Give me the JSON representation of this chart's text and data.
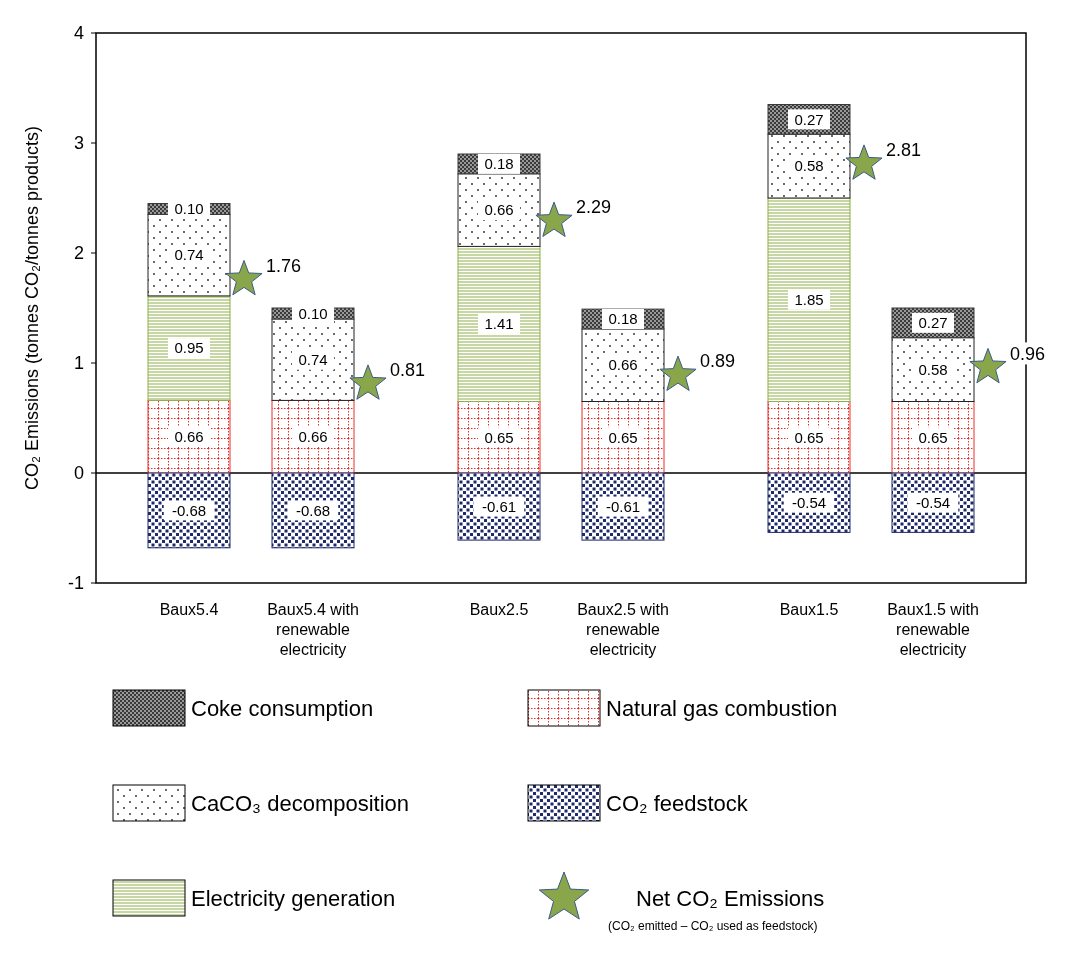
{
  "chart_data": {
    "type": "bar",
    "stacked": true,
    "ylabel": "CO₂ Emissions (tonnes CO₂/tonnes products)",
    "categories": [
      "Baux5.4",
      "Baux5.4 with renewable electricity",
      "Baux2.5",
      "Baux2.5 with renewable electricity",
      "Baux1.5",
      "Baux1.5 with renewable electricity"
    ],
    "series": [
      {
        "name": "Natural gas combustion",
        "color": "#e8302a",
        "values": [
          0.66,
          0.66,
          0.65,
          0.65,
          0.65,
          0.65
        ],
        "value_labels": [
          "0.66",
          "0.66",
          "0.65",
          "0.65",
          "0.65",
          "0.65"
        ]
      },
      {
        "name": "Electricity generation",
        "color": "#8db04a",
        "values": [
          0.95,
          null,
          1.41,
          null,
          1.85,
          null
        ],
        "value_labels": [
          "0.95",
          null,
          "1.41",
          null,
          "1.85",
          null
        ]
      },
      {
        "name": "CaCO₃ decomposition",
        "color": "#222222",
        "values": [
          0.74,
          0.74,
          0.66,
          0.66,
          0.58,
          0.58
        ],
        "value_labels": [
          "0.74",
          "0.74",
          "0.66",
          "0.66",
          "0.58",
          "0.58"
        ]
      },
      {
        "name": "Coke consumption",
        "color": "#3a3a3a",
        "values": [
          0.1,
          0.1,
          0.18,
          0.18,
          0.27,
          0.27
        ],
        "value_labels": [
          "0.10",
          "0.10",
          "0.18",
          "0.18",
          "0.27",
          "0.27"
        ]
      },
      {
        "name": "CO₂ feedstock",
        "color": "#1f2a6b",
        "values": [
          -0.68,
          -0.68,
          -0.61,
          -0.61,
          -0.54,
          -0.54
        ],
        "value_labels": [
          "-0.68",
          "-0.68",
          "-0.61",
          "-0.61",
          "-0.54",
          "-0.54"
        ]
      },
      {
        "name": "Net CO₂ Emissions",
        "type": "scatter",
        "marker": "star",
        "color": "#8aa64a",
        "x": [
          "Baux5.4",
          "Baux5.4 with renewable electricity",
          "Baux2.5",
          "Baux2.5 with renewable electricity",
          "Baux1.5",
          "Baux1.5 with renewable electricity"
        ],
        "values": [
          1.76,
          0.81,
          2.29,
          0.89,
          2.81,
          0.96
        ],
        "value_labels": [
          "1.76",
          "0.81",
          "2.29",
          "0.89",
          "2.81",
          "0.96"
        ]
      }
    ],
    "ref_lines": [
      {
        "axis": "y",
        "value": 0,
        "color": "#000000"
      }
    ],
    "ylim": [
      -1,
      4
    ],
    "yticks": [
      -1,
      0,
      1,
      2,
      3,
      4
    ],
    "grid": false,
    "legend": "bottom",
    "annotations": [
      "(CO₂ emitted – CO₂ used as feedstock)"
    ]
  }
}
